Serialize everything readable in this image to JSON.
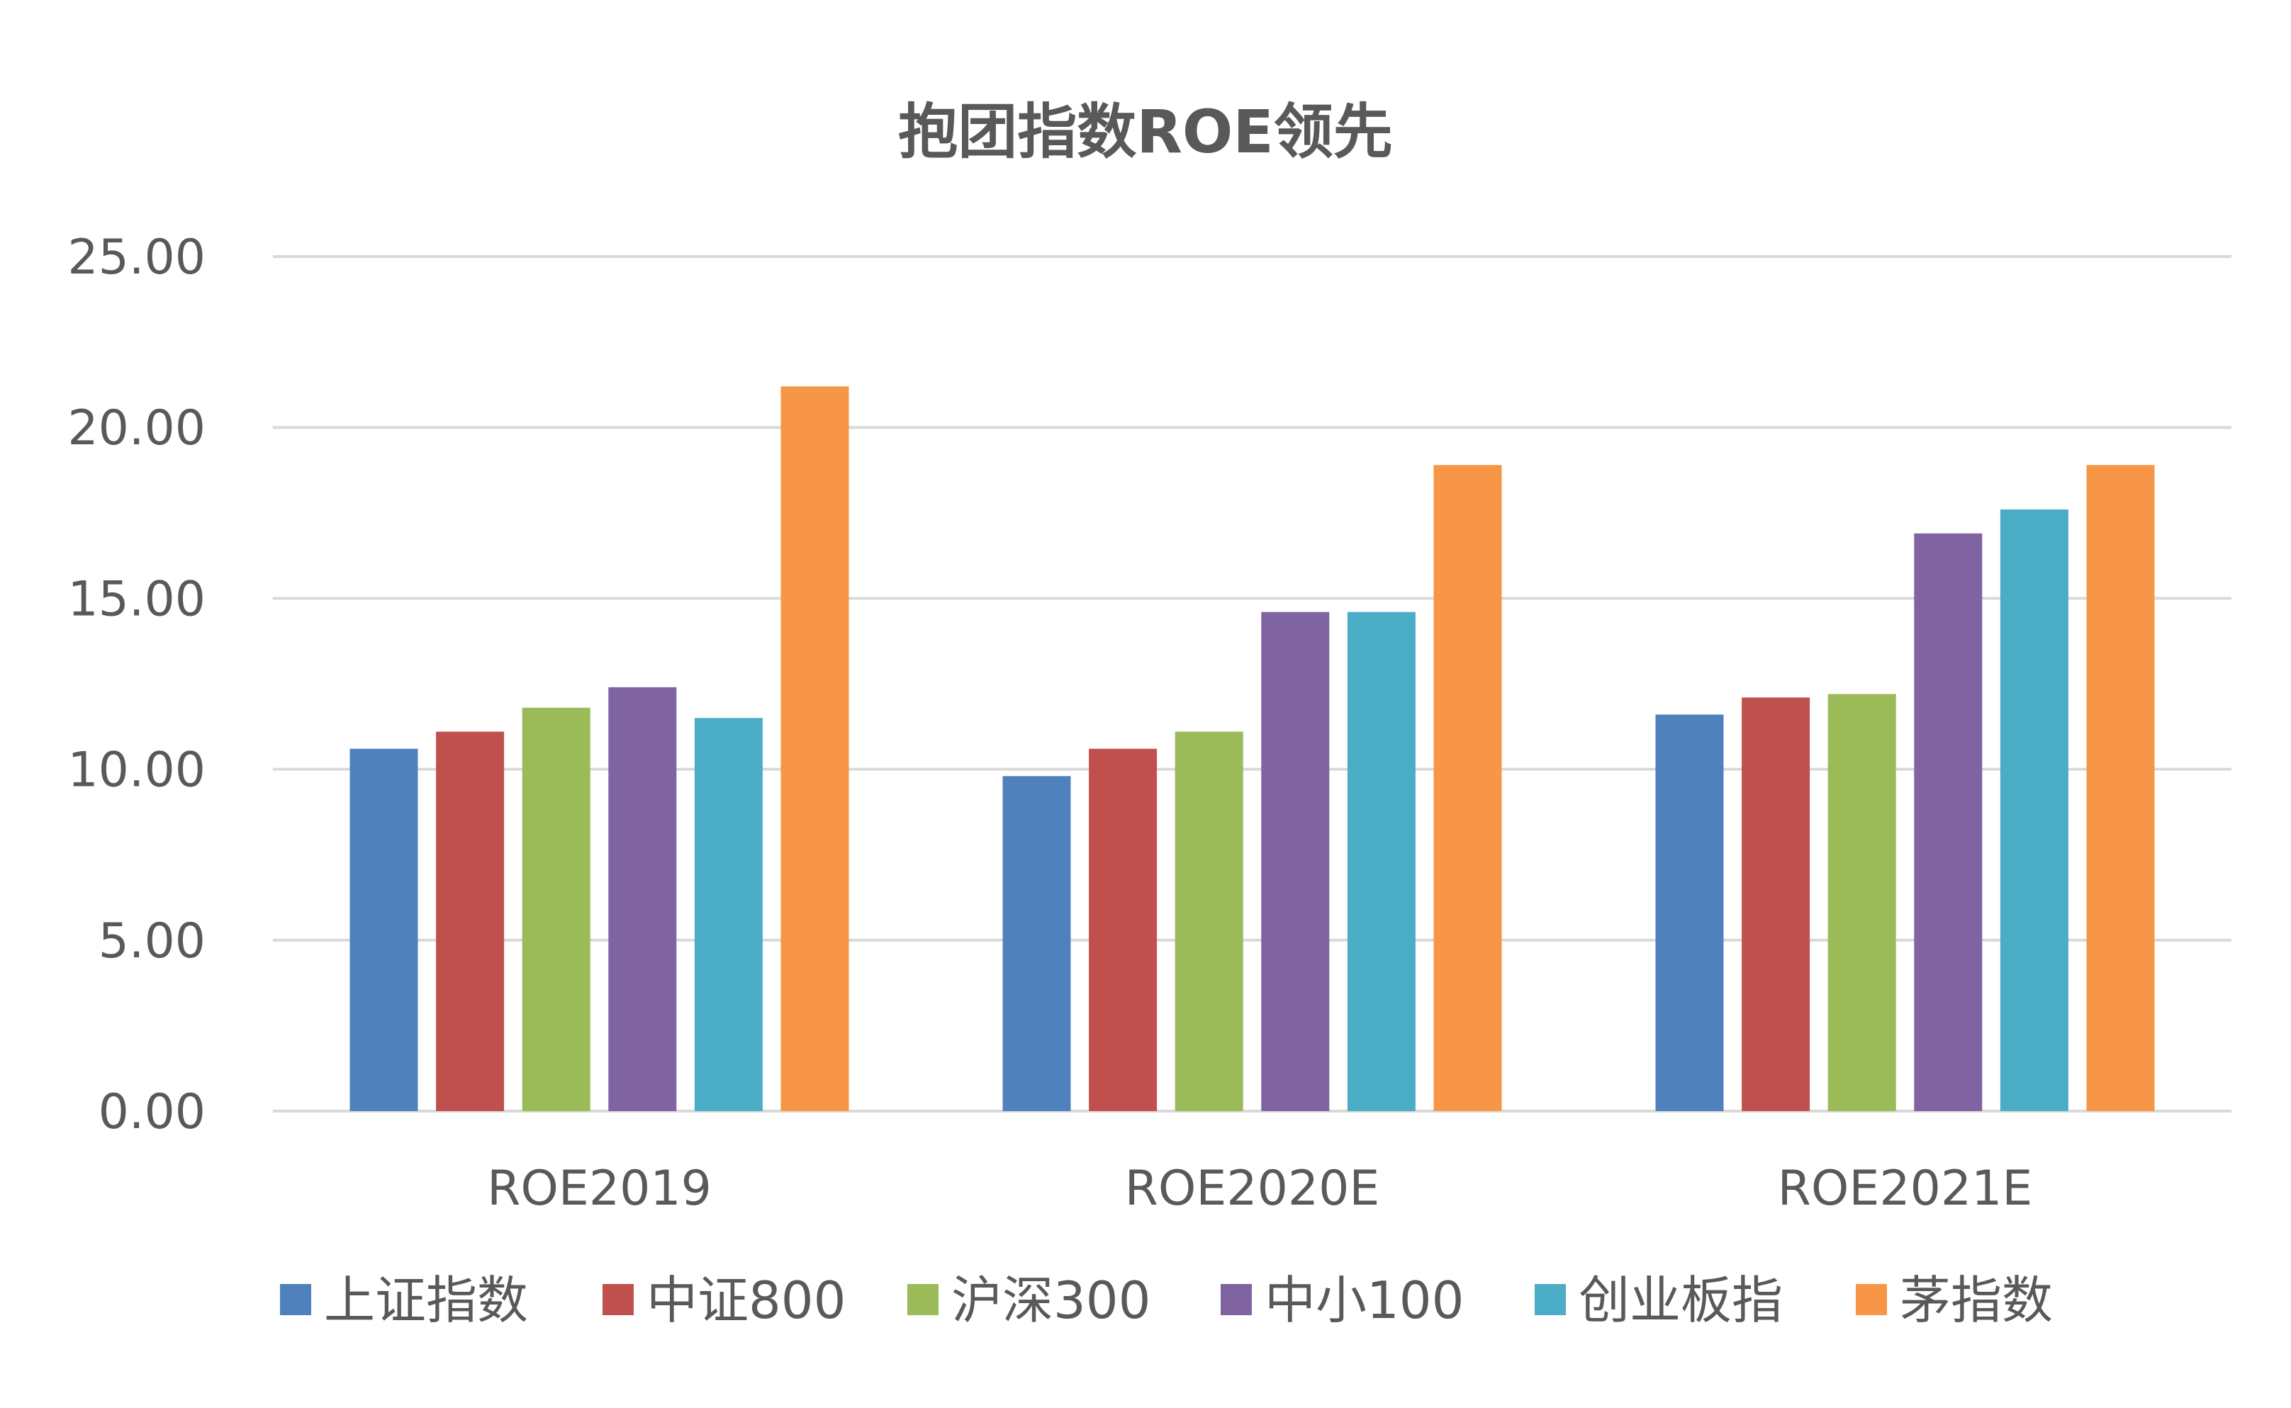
{
  "chart_data": {
    "type": "bar",
    "title": "抱团指数ROE领先",
    "xlabel": "",
    "ylabel": "",
    "ylim": [
      0,
      25
    ],
    "yticks": [
      "0.00",
      "5.00",
      "10.00",
      "15.00",
      "20.00",
      "25.00"
    ],
    "grid": true,
    "legend_position": "bottom",
    "categories": [
      "ROE2019",
      "ROE2020E",
      "ROE2021E"
    ],
    "series": [
      {
        "name": "上证指数",
        "color": "#4F81BD",
        "values": [
          10.6,
          9.8,
          11.6
        ]
      },
      {
        "name": "中证800",
        "color": "#C0504D",
        "values": [
          11.1,
          10.6,
          12.1
        ]
      },
      {
        "name": "沪深300",
        "color": "#9BBB59",
        "values": [
          11.8,
          11.1,
          12.2
        ]
      },
      {
        "name": "中小100",
        "color": "#8064A2",
        "values": [
          12.4,
          14.6,
          16.9
        ]
      },
      {
        "name": "创业板指",
        "color": "#4BACC6",
        "values": [
          11.5,
          14.6,
          17.6
        ]
      },
      {
        "name": "茅指数",
        "color": "#F79646",
        "values": [
          21.2,
          18.9,
          18.9
        ]
      }
    ]
  }
}
